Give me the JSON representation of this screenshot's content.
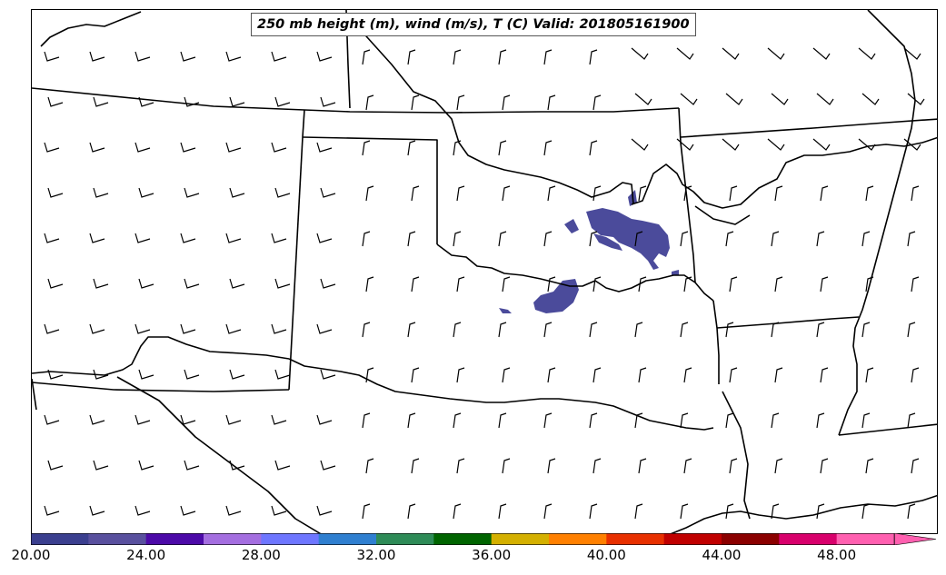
{
  "title": "250 mb height (m), wind (m/s), T (C) Valid: 201805161900",
  "colorbar": {
    "tick_labels": [
      "20.00",
      "24.00",
      "28.00",
      "32.00",
      "36.00",
      "40.00",
      "44.00",
      "48.00"
    ],
    "colors": [
      "#3b3f8f",
      "#59509e",
      "#4c0aa8",
      "#a46ee0",
      "#6e76ff",
      "#2f7fd0",
      "#2e8b57",
      "#006400",
      "#d4b000",
      "#ff8000",
      "#e83000",
      "#c00000",
      "#8b0000",
      "#d8006c",
      "#ff60b0"
    ],
    "extend": "max"
  },
  "colors": {
    "shading": "#4b4b9b",
    "borders": "#000000",
    "wind_barbs": "#000000"
  }
}
